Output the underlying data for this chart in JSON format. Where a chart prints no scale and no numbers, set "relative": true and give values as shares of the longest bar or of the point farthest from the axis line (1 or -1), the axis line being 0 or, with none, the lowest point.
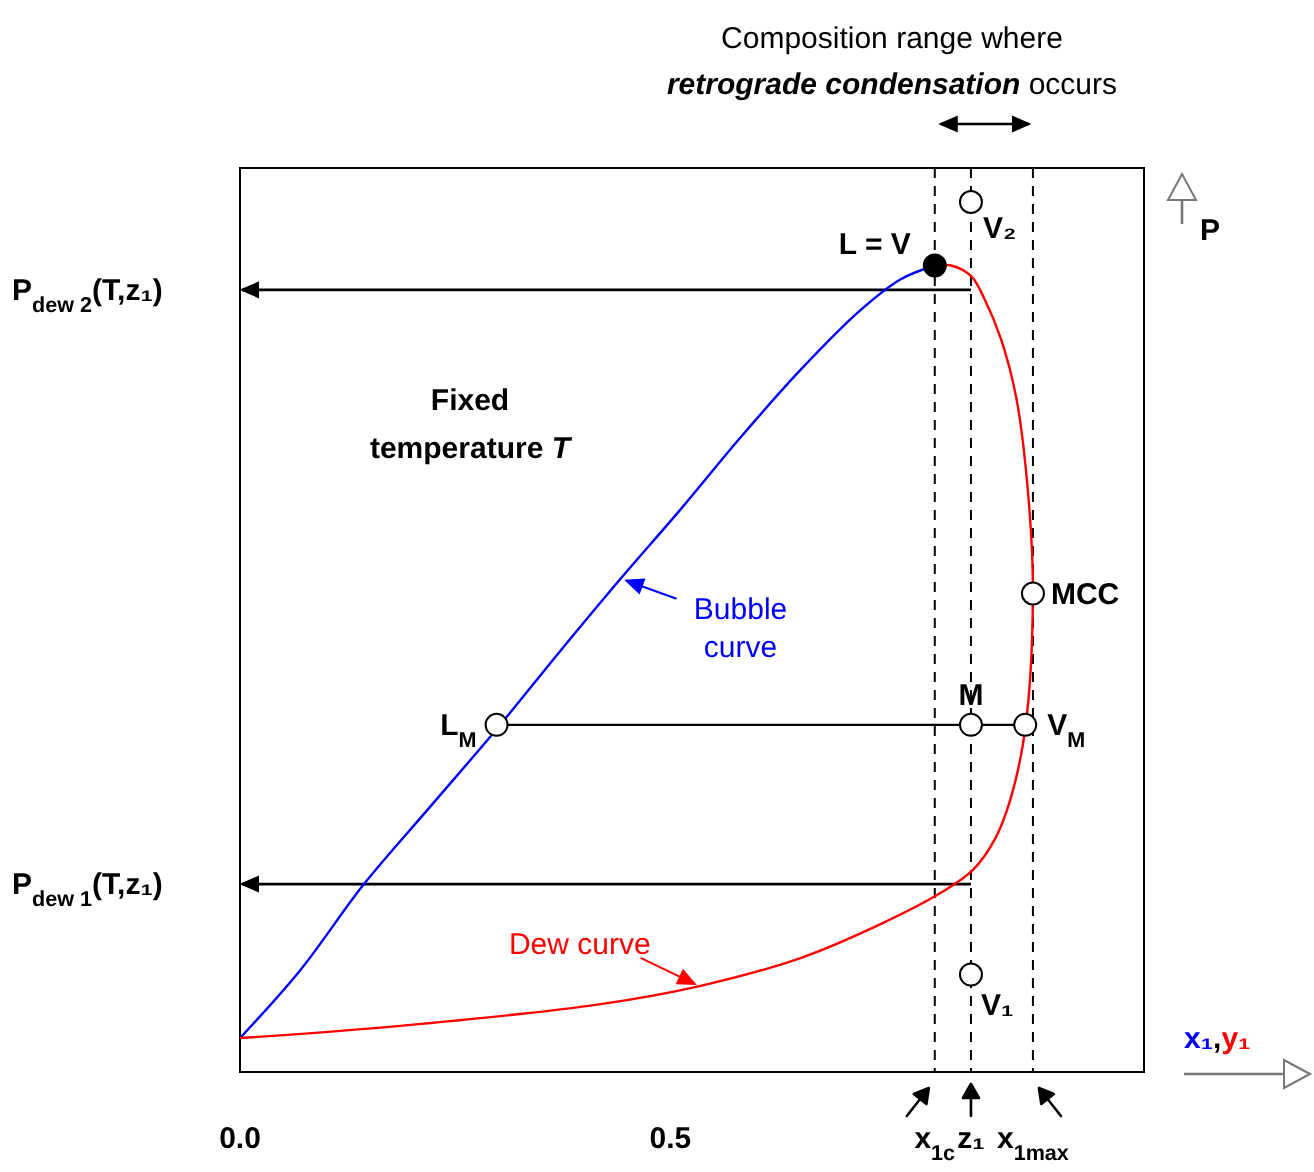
{
  "chart_data": {
    "type": "line",
    "title": "Composition range where",
    "subtitle": "retrograde condensation occurs",
    "xlabel": "x₁,y₁",
    "ylabel": "P",
    "relative": true,
    "xlim": [
      0,
      1.05
    ],
    "xticks": [
      {
        "value": 0,
        "label": "0.0"
      },
      0.5,
      {
        "value": 0.807,
        "label": "x$_{1c}$"
      },
      {
        "value": 0.849,
        "label": "z₁"
      },
      {
        "value": 0.921,
        "label": "x$_{1max}$"
      }
    ],
    "series": [
      {
        "name": "Bubble curve",
        "color": "#0000ff",
        "x": [
          0,
          0.07,
          0.144,
          0.221,
          0.298,
          0.372,
          0.442,
          0.512,
          0.581,
          0.651,
          0.721,
          0.767,
          0.807
        ],
        "values": [
          0.039,
          0.117,
          0.216,
          0.305,
          0.394,
          0.484,
          0.567,
          0.647,
          0.729,
          0.807,
          0.876,
          0.911,
          0.927
        ]
      },
      {
        "name": "Dew curve",
        "color": "#ff0000",
        "x": [
          0,
          0.186,
          0.419,
          0.535,
          0.651,
          0.744,
          0.814,
          0.851,
          0.877,
          0.895,
          0.912,
          0.921,
          0.916,
          0.902,
          0.884,
          0.865,
          0.849,
          0.826,
          0.807
        ],
        "values": [
          0.039,
          0.053,
          0.078,
          0.099,
          0.131,
          0.17,
          0.206,
          0.232,
          0.268,
          0.314,
          0.394,
          0.55,
          0.658,
          0.773,
          0.842,
          0.888,
          0.915,
          0.927,
          0.927
        ]
      },
      {
        "type": "line",
        "color": "#000000",
        "x": [
          0.298,
          0.912
        ],
        "values": [
          0.399,
          0.399
        ]
      },
      {
        "type": "scatter",
        "marker": "circle",
        "color": "#000000",
        "colors": [
          "#000000",
          "#ffffff",
          "#ffffff",
          "#ffffff",
          "#ffffff",
          "#ffffff",
          "#ffffff"
        ],
        "x": [
          0.807,
          0.849,
          0.921,
          0.849,
          0.912,
          0.298,
          0.849
        ],
        "values": [
          0.927,
          1,
          0.55,
          0.399,
          0.399,
          0.399,
          0.112
        ]
      }
    ],
    "ref_lines": [
      {
        "axis": "x",
        "value": 0.807,
        "line_style": "dashed"
      },
      {
        "axis": "x",
        "value": 0.849,
        "line_style": "dashed"
      },
      {
        "axis": "x",
        "value": 0.921,
        "line_style": "dashed"
      },
      {
        "axis": "y",
        "value": 0.899,
        "label": "P$_{dew 2}$(T,z₁)"
      },
      {
        "axis": "y",
        "value": 0.216,
        "label": "P$_{dew 1}$(T,z₁)"
      }
    ],
    "annotations": [
      "Fixed temperature T",
      {
        "text": "L = V",
        "x": 0.807,
        "y": 0.927
      },
      {
        "text": "V₂",
        "x": 0.849,
        "y": 1
      },
      {
        "text": "MCC",
        "x": 0.921,
        "y": 0.55
      },
      {
        "text": "M",
        "x": 0.849,
        "y": 0.399
      },
      {
        "text": "V$_{M}$",
        "x": 0.912,
        "y": 0.399
      },
      {
        "text": "L$_{M}$",
        "x": 0.298,
        "y": 0.399
      },
      {
        "text": "V₁",
        "x": 0.849,
        "y": 0.112
      }
    ]
  }
}
